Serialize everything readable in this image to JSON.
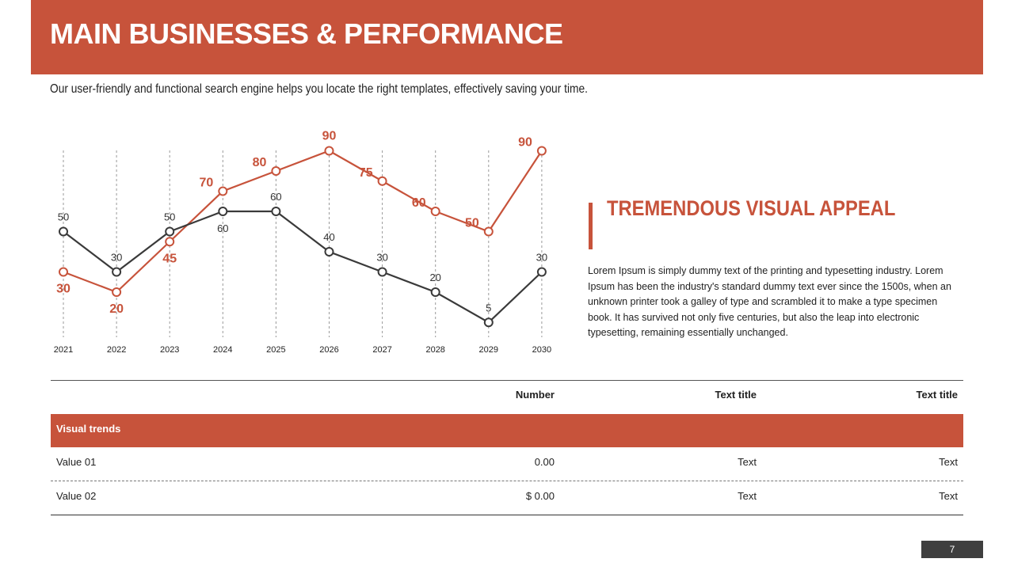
{
  "header": {
    "title": "MAIN BUSINESSES & PERFORMANCE",
    "subtitle": "Our user-friendly and functional search engine helps you locate the right templates, effectively saving your time."
  },
  "side": {
    "title": "TREMENDOUS VISUAL APPEAL",
    "body": "Lorem Ipsum is simply dummy text of the printing and typesetting industry. Lorem Ipsum has been the industry's standard dummy text ever since the 1500s, when an unknown printer took a galley of type and scrambled it to make a type specimen book. It has survived not only five centuries, but also the leap into electronic typesetting, remaining essentially unchanged."
  },
  "table": {
    "headers": [
      "",
      "Number",
      "Text title",
      "Text title"
    ],
    "band_label": "Visual trends",
    "rows": [
      [
        "Value 01",
        "0.00",
        "Text",
        "Text"
      ],
      [
        "Value 02",
        "$ 0.00",
        "Text",
        "Text"
      ]
    ]
  },
  "page_number": "7",
  "colors": {
    "accent": "#c7533b",
    "dark": "#3a3a3a"
  },
  "chart_data": {
    "type": "line",
    "x": [
      "2021",
      "2022",
      "2023",
      "2024",
      "2025",
      "2026",
      "2027",
      "2028",
      "2029",
      "2030"
    ],
    "series": [
      {
        "values": [
          30,
          20,
          45,
          70,
          80,
          90,
          75,
          60,
          50,
          90
        ],
        "color": "#c7533b"
      },
      {
        "values": [
          50,
          30,
          50,
          60,
          60,
          40,
          30,
          20,
          5,
          30
        ],
        "color": "#3a3a3a"
      }
    ],
    "ylim": [
      0,
      100
    ],
    "xlabel": "",
    "ylabel": "",
    "grid": "vertical dashed",
    "legend": "none"
  }
}
